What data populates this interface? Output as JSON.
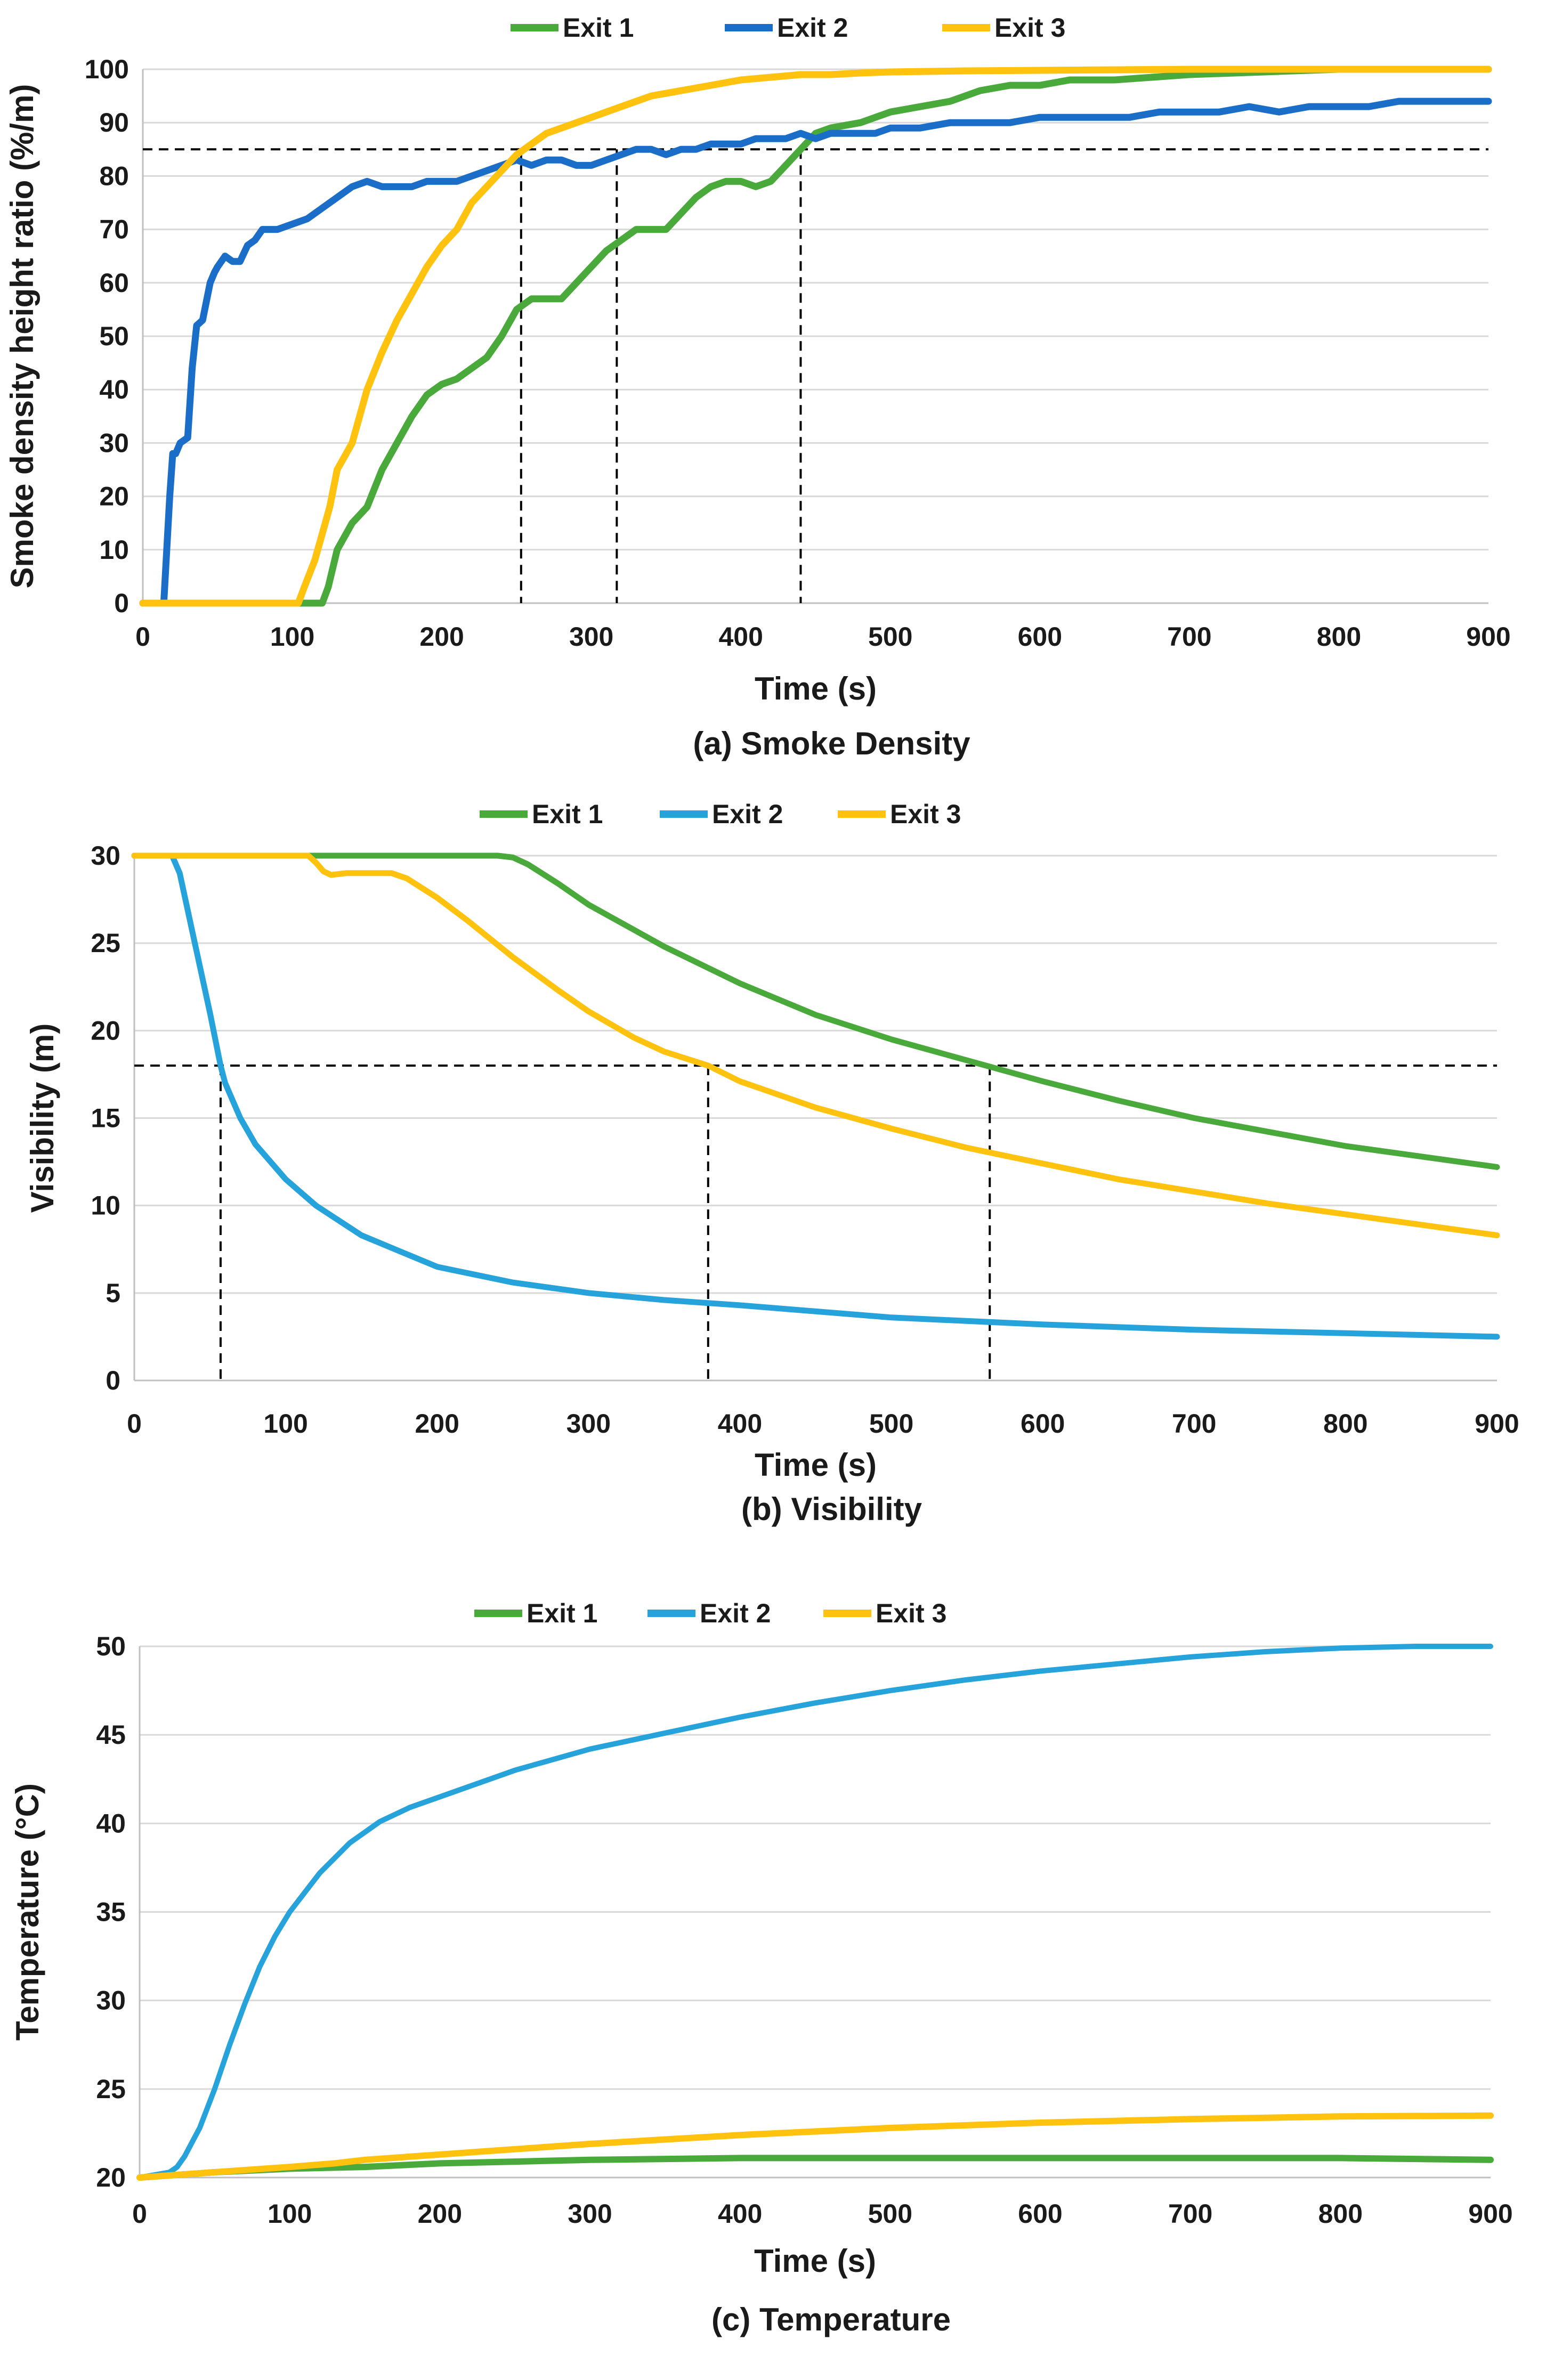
{
  "figure": {
    "colors": {
      "green": "#4aa93b",
      "blue_dark": "#1a6ec8",
      "blue_light": "#27a3dc",
      "yellow": "#ffc20e"
    }
  },
  "chart_data": [
    {
      "id": "a",
      "type": "line",
      "caption": "(a) Smoke Density",
      "xlabel": "Time (s)",
      "ylabel": "Smoke density height ratio (%/m)",
      "xlim": [
        0,
        900
      ],
      "ylim": [
        0,
        100
      ],
      "xticks": [
        0,
        100,
        200,
        300,
        400,
        500,
        600,
        700,
        800,
        900
      ],
      "yticks": [
        0,
        10,
        20,
        30,
        40,
        50,
        60,
        70,
        80,
        90,
        100
      ],
      "grid": true,
      "legend_position": "top-center",
      "reference_lines": {
        "y": 85,
        "x": [
          253,
          317,
          440
        ]
      },
      "series": [
        {
          "name": "Exit 1",
          "color": "#4aa93b",
          "x": [
            0,
            120,
            124,
            130,
            140,
            150,
            160,
            170,
            180,
            190,
            200,
            210,
            220,
            230,
            240,
            250,
            260,
            270,
            280,
            290,
            300,
            310,
            320,
            330,
            340,
            350,
            360,
            370,
            380,
            390,
            400,
            410,
            420,
            430,
            440,
            450,
            460,
            480,
            500,
            520,
            540,
            560,
            580,
            600,
            620,
            650,
            700,
            750,
            800,
            900
          ],
          "y": [
            0,
            0,
            3,
            10,
            15,
            18,
            25,
            30,
            35,
            39,
            41,
            42,
            44,
            46,
            50,
            55,
            57,
            57,
            57,
            60,
            63,
            66,
            68,
            70,
            70,
            70,
            73,
            76,
            78,
            79,
            79,
            78,
            79,
            82,
            85,
            88,
            89,
            90,
            92,
            93,
            94,
            96,
            97,
            97,
            98,
            98,
            99,
            99.5,
            100,
            100
          ]
        },
        {
          "name": "Exit 2",
          "color": "#1a6ec8",
          "x": [
            0,
            14,
            16,
            18,
            20,
            22,
            25,
            30,
            33,
            36,
            40,
            45,
            48,
            50,
            55,
            60,
            65,
            70,
            75,
            80,
            90,
            100,
            110,
            120,
            130,
            140,
            150,
            160,
            170,
            180,
            190,
            200,
            210,
            220,
            230,
            240,
            250,
            260,
            270,
            280,
            290,
            300,
            310,
            320,
            330,
            340,
            350,
            360,
            370,
            380,
            390,
            400,
            410,
            420,
            430,
            440,
            450,
            460,
            470,
            480,
            490,
            500,
            520,
            540,
            560,
            580,
            600,
            620,
            640,
            660,
            680,
            700,
            720,
            740,
            760,
            780,
            800,
            820,
            840,
            860,
            880,
            900
          ],
          "y": [
            0,
            0,
            10,
            20,
            28,
            28,
            30,
            31,
            44,
            52,
            53,
            60,
            62,
            63,
            65,
            64,
            64,
            67,
            68,
            70,
            70,
            71,
            72,
            74,
            76,
            78,
            79,
            78,
            78,
            78,
            79,
            79,
            79,
            80,
            81,
            82,
            83,
            82,
            83,
            83,
            82,
            82,
            83,
            84,
            85,
            85,
            84,
            85,
            85,
            86,
            86,
            86,
            87,
            87,
            87,
            88,
            87,
            88,
            88,
            88,
            88,
            89,
            89,
            90,
            90,
            90,
            91,
            91,
            91,
            91,
            92,
            92,
            92,
            93,
            92,
            93,
            93,
            93,
            94,
            94,
            94,
            94
          ]
        },
        {
          "name": "Exit 3",
          "color": "#ffc20e",
          "x": [
            0,
            104,
            108,
            115,
            120,
            125,
            130,
            140,
            145,
            150,
            160,
            170,
            180,
            190,
            200,
            210,
            220,
            230,
            240,
            250,
            260,
            270,
            280,
            300,
            320,
            340,
            360,
            380,
            400,
            420,
            440,
            460,
            480,
            500,
            550,
            600,
            650,
            700,
            800,
            900
          ],
          "y": [
            0,
            0,
            3,
            8,
            13,
            18,
            25,
            30,
            35,
            40,
            47,
            53,
            58,
            63,
            67,
            70,
            75,
            78,
            81,
            84,
            86,
            88,
            89,
            91,
            93,
            95,
            96,
            97,
            98,
            98.5,
            99,
            99,
            99.3,
            99.5,
            99.7,
            99.8,
            99.9,
            100,
            100,
            100
          ]
        }
      ]
    },
    {
      "id": "b",
      "type": "line",
      "caption": "(b) Visibility",
      "xlabel": "Time (s)",
      "ylabel": "Visibility (m)",
      "xlim": [
        0,
        900
      ],
      "ylim": [
        0,
        30
      ],
      "xticks": [
        0,
        100,
        200,
        300,
        400,
        500,
        600,
        700,
        800,
        900
      ],
      "yticks": [
        0,
        5,
        10,
        15,
        20,
        25,
        30
      ],
      "grid": true,
      "legend_position": "top-center",
      "reference_lines": {
        "y": 18,
        "x": [
          57,
          379,
          565
        ]
      },
      "series": [
        {
          "name": "Exit 1",
          "color": "#4aa93b",
          "x": [
            0,
            240,
            250,
            260,
            280,
            300,
            350,
            400,
            450,
            500,
            550,
            600,
            650,
            700,
            750,
            800,
            850,
            900
          ],
          "y": [
            30,
            30,
            29.9,
            29.5,
            28.4,
            27.2,
            24.8,
            22.7,
            20.9,
            19.5,
            18.3,
            17.1,
            16.0,
            15.0,
            14.2,
            13.4,
            12.8,
            12.2
          ]
        },
        {
          "name": "Exit 2",
          "color": "#27a3dc",
          "x": [
            0,
            25,
            30,
            40,
            50,
            57,
            60,
            70,
            80,
            100,
            120,
            150,
            200,
            250,
            300,
            350,
            400,
            500,
            600,
            700,
            800,
            900
          ],
          "y": [
            30,
            30,
            29,
            25,
            21,
            18,
            17,
            15,
            13.5,
            11.5,
            10,
            8.3,
            6.5,
            5.6,
            5.0,
            4.6,
            4.3,
            3.6,
            3.2,
            2.9,
            2.7,
            2.5
          ]
        },
        {
          "name": "Exit 3",
          "color": "#ffc20e",
          "x": [
            0,
            115,
            120,
            125,
            130,
            140,
            160,
            170,
            180,
            200,
            220,
            250,
            280,
            300,
            330,
            350,
            379,
            400,
            450,
            500,
            550,
            600,
            650,
            700,
            750,
            800,
            850,
            900
          ],
          "y": [
            30,
            30,
            29.6,
            29.1,
            28.9,
            29.0,
            29.0,
            29.0,
            28.7,
            27.6,
            26.3,
            24.2,
            22.3,
            21.1,
            19.6,
            18.8,
            18.0,
            17.1,
            15.6,
            14.4,
            13.3,
            12.4,
            11.5,
            10.8,
            10.1,
            9.5,
            8.9,
            8.3
          ]
        }
      ]
    },
    {
      "id": "c",
      "type": "line",
      "caption": "(c) Temperature",
      "xlabel": "Time (s)",
      "ylabel": "Temperature (°C)",
      "xlim": [
        0,
        900
      ],
      "ylim": [
        20,
        50
      ],
      "xticks": [
        0,
        100,
        200,
        300,
        400,
        500,
        600,
        700,
        800,
        900
      ],
      "yticks": [
        20,
        25,
        30,
        35,
        40,
        45,
        50
      ],
      "grid": true,
      "legend_position": "top-center",
      "reference_lines": {
        "y": null,
        "x": []
      },
      "series": [
        {
          "name": "Exit 1",
          "color": "#4aa93b",
          "x": [
            0,
            50,
            100,
            150,
            200,
            250,
            300,
            400,
            500,
            600,
            700,
            800,
            900
          ],
          "y": [
            20,
            20.3,
            20.5,
            20.6,
            20.8,
            20.9,
            21.0,
            21.1,
            21.1,
            21.1,
            21.1,
            21.1,
            21.0
          ]
        },
        {
          "name": "Exit 2",
          "color": "#27a3dc",
          "x": [
            0,
            20,
            25,
            30,
            40,
            50,
            60,
            70,
            80,
            90,
            100,
            120,
            140,
            160,
            180,
            200,
            250,
            300,
            350,
            400,
            450,
            500,
            550,
            600,
            650,
            700,
            750,
            800,
            850,
            900
          ],
          "y": [
            20,
            20.3,
            20.6,
            21.2,
            22.8,
            25.0,
            27.5,
            29.8,
            31.9,
            33.6,
            35.0,
            37.2,
            38.9,
            40.1,
            40.9,
            41.5,
            43.0,
            44.2,
            45.1,
            46.0,
            46.8,
            47.5,
            48.1,
            48.6,
            49.0,
            49.4,
            49.7,
            49.9,
            50.0,
            50.0
          ]
        },
        {
          "name": "Exit 3",
          "color": "#ffc20e",
          "x": [
            0,
            50,
            100,
            130,
            150,
            200,
            250,
            300,
            400,
            500,
            600,
            700,
            800,
            900
          ],
          "y": [
            20,
            20.3,
            20.6,
            20.8,
            21.0,
            21.3,
            21.6,
            21.9,
            22.4,
            22.8,
            23.1,
            23.3,
            23.45,
            23.5
          ]
        }
      ]
    }
  ]
}
